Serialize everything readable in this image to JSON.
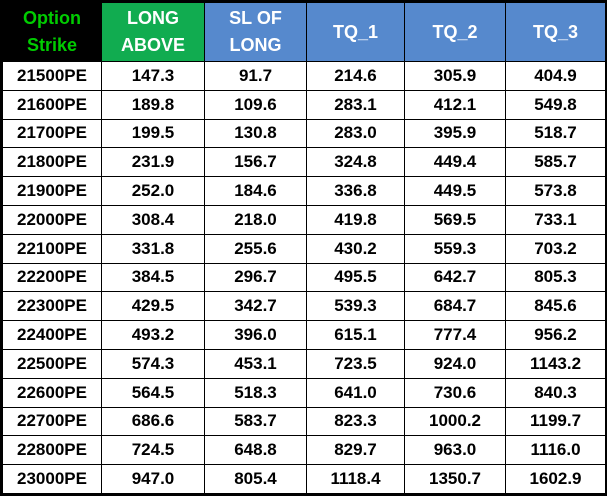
{
  "chart_data": {
    "type": "table",
    "title": "",
    "columns": [
      "Option Strike",
      "LONG ABOVE",
      "SL OF LONG",
      "TQ_1",
      "TQ_2",
      "TQ_3"
    ],
    "rows": [
      [
        "21500PE",
        147.3,
        91.7,
        214.6,
        305.9,
        404.9
      ],
      [
        "21600PE",
        189.8,
        109.6,
        283.1,
        412.1,
        549.8
      ],
      [
        "21700PE",
        199.5,
        130.8,
        283.0,
        395.9,
        518.7
      ],
      [
        "21800PE",
        231.9,
        156.7,
        324.8,
        449.4,
        585.7
      ],
      [
        "21900PE",
        252.0,
        184.6,
        336.8,
        449.5,
        573.8
      ],
      [
        "22000PE",
        308.4,
        218.0,
        419.8,
        569.5,
        733.1
      ],
      [
        "22100PE",
        331.8,
        255.6,
        430.2,
        559.3,
        703.2
      ],
      [
        "22200PE",
        384.5,
        296.7,
        495.5,
        642.7,
        805.3
      ],
      [
        "22300PE",
        429.5,
        342.7,
        539.3,
        684.7,
        845.6
      ],
      [
        "22400PE",
        493.2,
        396.0,
        615.1,
        777.4,
        956.2
      ],
      [
        "22500PE",
        574.3,
        453.1,
        723.5,
        924.0,
        1143.2
      ],
      [
        "22600PE",
        564.5,
        518.3,
        641.0,
        730.6,
        840.3
      ],
      [
        "22700PE",
        686.6,
        583.7,
        823.3,
        1000.2,
        1199.7
      ],
      [
        "22800PE",
        724.5,
        648.8,
        829.7,
        963.0,
        1116.0
      ],
      [
        "23000PE",
        947.0,
        805.4,
        1118.4,
        1350.7,
        1602.9
      ]
    ]
  },
  "table": {
    "headers": [
      {
        "lines": [
          "Option",
          "Strike"
        ],
        "bg": "#000000",
        "fg": "#00CC00"
      },
      {
        "lines": [
          "LONG",
          "ABOVE"
        ],
        "bg": "#11AC50",
        "fg": "#FFFFFF"
      },
      {
        "lines": [
          "SL OF",
          "LONG"
        ],
        "bg": "#5689CD",
        "fg": "#FFFFFF"
      },
      {
        "lines": [
          "TQ_1"
        ],
        "bg": "#5689CD",
        "fg": "#FFFFFF"
      },
      {
        "lines": [
          "TQ_2"
        ],
        "bg": "#5689CD",
        "fg": "#FFFFFF"
      },
      {
        "lines": [
          "TQ_3"
        ],
        "bg": "#5689CD",
        "fg": "#FFFFFF"
      }
    ],
    "rows": [
      {
        "strike": "21500PE",
        "values": [
          "147.3",
          "91.7",
          "214.6",
          "305.9",
          "404.9"
        ]
      },
      {
        "strike": "21600PE",
        "values": [
          "189.8",
          "109.6",
          "283.1",
          "412.1",
          "549.8"
        ]
      },
      {
        "strike": "21700PE",
        "values": [
          "199.5",
          "130.8",
          "283.0",
          "395.9",
          "518.7"
        ]
      },
      {
        "strike": "21800PE",
        "values": [
          "231.9",
          "156.7",
          "324.8",
          "449.4",
          "585.7"
        ]
      },
      {
        "strike": "21900PE",
        "values": [
          "252.0",
          "184.6",
          "336.8",
          "449.5",
          "573.8"
        ]
      },
      {
        "strike": "22000PE",
        "values": [
          "308.4",
          "218.0",
          "419.8",
          "569.5",
          "733.1"
        ]
      },
      {
        "strike": "22100PE",
        "values": [
          "331.8",
          "255.6",
          "430.2",
          "559.3",
          "703.2"
        ]
      },
      {
        "strike": "22200PE",
        "values": [
          "384.5",
          "296.7",
          "495.5",
          "642.7",
          "805.3"
        ]
      },
      {
        "strike": "22300PE",
        "values": [
          "429.5",
          "342.7",
          "539.3",
          "684.7",
          "845.6"
        ]
      },
      {
        "strike": "22400PE",
        "values": [
          "493.2",
          "396.0",
          "615.1",
          "777.4",
          "956.2"
        ]
      },
      {
        "strike": "22500PE",
        "values": [
          "574.3",
          "453.1",
          "723.5",
          "924.0",
          "1143.2"
        ]
      },
      {
        "strike": "22600PE",
        "values": [
          "564.5",
          "518.3",
          "641.0",
          "730.6",
          "840.3"
        ]
      },
      {
        "strike": "22700PE",
        "values": [
          "686.6",
          "583.7",
          "823.3",
          "1000.2",
          "1199.7"
        ]
      },
      {
        "strike": "22800PE",
        "values": [
          "724.5",
          "648.8",
          "829.7",
          "963.0",
          "1116.0"
        ]
      },
      {
        "strike": "23000PE",
        "values": [
          "947.0",
          "805.4",
          "1118.4",
          "1350.7",
          "1602.9"
        ]
      }
    ]
  },
  "colors": {
    "border": "#000000",
    "option_strike_bg": "#000000",
    "option_strike_text": "#00CC00",
    "long_above_bg": "#11AC50",
    "blue_header_bg": "#5689CD",
    "header_text": "#FFFFFF",
    "cell_bg": "#FFFFFF",
    "cell_text": "#000000"
  }
}
